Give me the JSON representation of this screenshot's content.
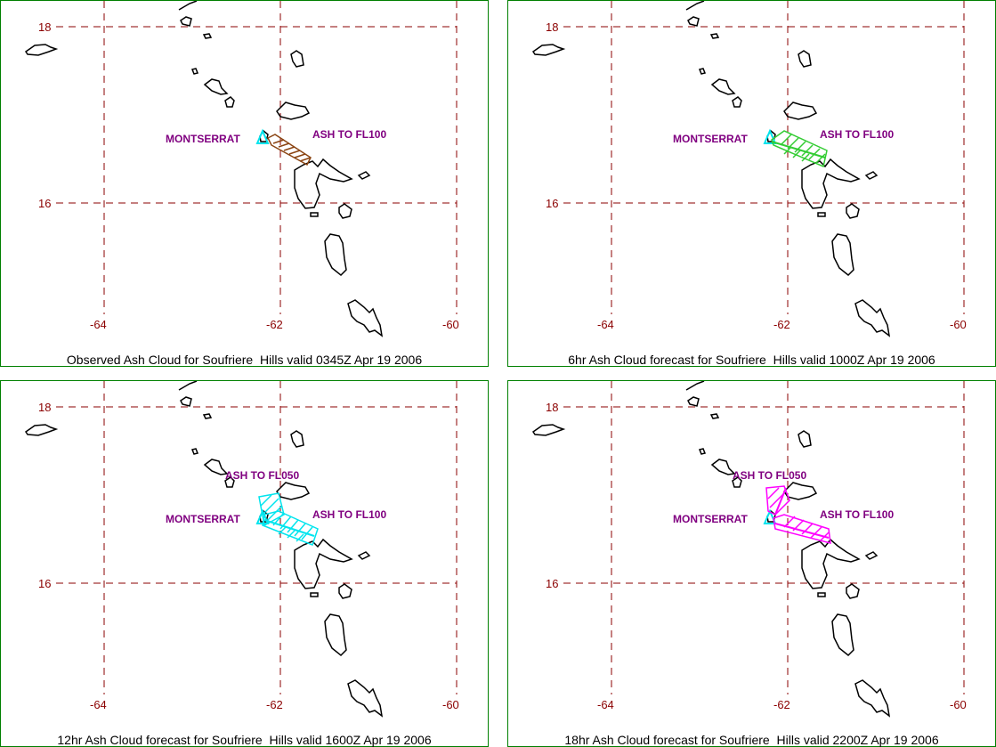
{
  "panels": [
    {
      "caption": "Observed Ash Cloud for Soufriere  Hills valid 0345Z Apr 19 2006",
      "cloud_color": "#8b4513",
      "labels": [
        {
          "text": "MONTSERRAT",
          "kind": "place"
        },
        {
          "text": "ASH TO FL100",
          "kind": "ash"
        }
      ]
    },
    {
      "caption": "6hr Ash Cloud forecast for Soufriere  Hills valid 1000Z Apr 19 2006",
      "cloud_color": "#33cc33",
      "labels": [
        {
          "text": "MONTSERRAT",
          "kind": "place"
        },
        {
          "text": "ASH TO FL100",
          "kind": "ash"
        }
      ]
    },
    {
      "caption": "12hr Ash Cloud forecast for Soufriere  Hills valid 1600Z Apr 19 2006",
      "cloud_color": "#00e5ee",
      "labels": [
        {
          "text": "ASH TO FL050",
          "kind": "ash"
        },
        {
          "text": "MONTSERRAT",
          "kind": "place"
        },
        {
          "text": "ASH TO FL100",
          "kind": "ash"
        }
      ]
    },
    {
      "caption": "18hr Ash Cloud forecast for Soufriere  Hills valid 2200Z Apr 19 2006",
      "cloud_color": "#ff00ff",
      "labels": [
        {
          "text": "ASH TO FL050",
          "kind": "ash"
        },
        {
          "text": "MONTSERRAT",
          "kind": "place"
        },
        {
          "text": "ASH TO FL100",
          "kind": "ash"
        }
      ]
    }
  ],
  "lat_ticks": [
    "18",
    "16"
  ],
  "lon_ticks": [
    "-64",
    "-62",
    "-60"
  ],
  "colors": {
    "frame": "#008000",
    "grid": "#8b0000",
    "tick_label": "#8b0000",
    "label": "#800080",
    "coast": "#000000",
    "volcano": "#00e5ee"
  }
}
